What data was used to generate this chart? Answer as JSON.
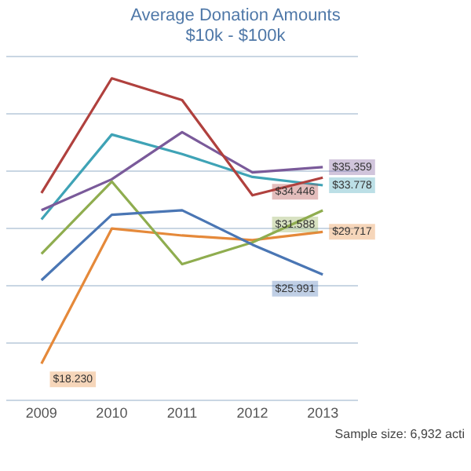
{
  "chart_data": {
    "type": "line",
    "title": "Average Donation Amounts",
    "subtitle": "$10k - $100k",
    "categories": [
      "2009",
      "2010",
      "2011",
      "2012",
      "2013"
    ],
    "tick_labels": "x",
    "grid": "y",
    "legend": false,
    "marker": "none",
    "line_style": "solid",
    "annotations": [
      "Sample size: 6,932 acti"
    ],
    "series": [
      {
        "color": "#4a76b4",
        "values": [
          25.5,
          31.2,
          31.6,
          28.6,
          25.991
        ],
        "value_labels": [
          null,
          null,
          null,
          null,
          "$25.991"
        ]
      },
      {
        "color": "#b0413e",
        "values": [
          33.1,
          43.1,
          41.2,
          32.9,
          34.446
        ],
        "value_labels": [
          null,
          null,
          null,
          null,
          "$34.446"
        ]
      },
      {
        "color": "#8fad4f",
        "values": [
          27.8,
          34.1,
          26.9,
          28.8,
          31.588
        ],
        "value_labels": [
          null,
          null,
          null,
          null,
          "$31.588"
        ]
      },
      {
        "color": "#7a5a9a",
        "values": [
          31.6,
          34.3,
          38.4,
          34.9,
          35.359
        ],
        "value_labels": [
          null,
          null,
          null,
          null,
          "$35.359"
        ]
      },
      {
        "color": "#3fa3b6",
        "values": [
          30.8,
          38.2,
          36.5,
          34.5,
          33.778
        ],
        "value_labels": [
          null,
          null,
          null,
          null,
          "$33.778"
        ]
      },
      {
        "color": "#e5893a",
        "values": [
          18.23,
          30.0,
          29.4,
          29.0,
          29.717
        ],
        "value_labels": [
          "$18.230",
          null,
          null,
          null,
          "$29.717"
        ]
      }
    ]
  }
}
